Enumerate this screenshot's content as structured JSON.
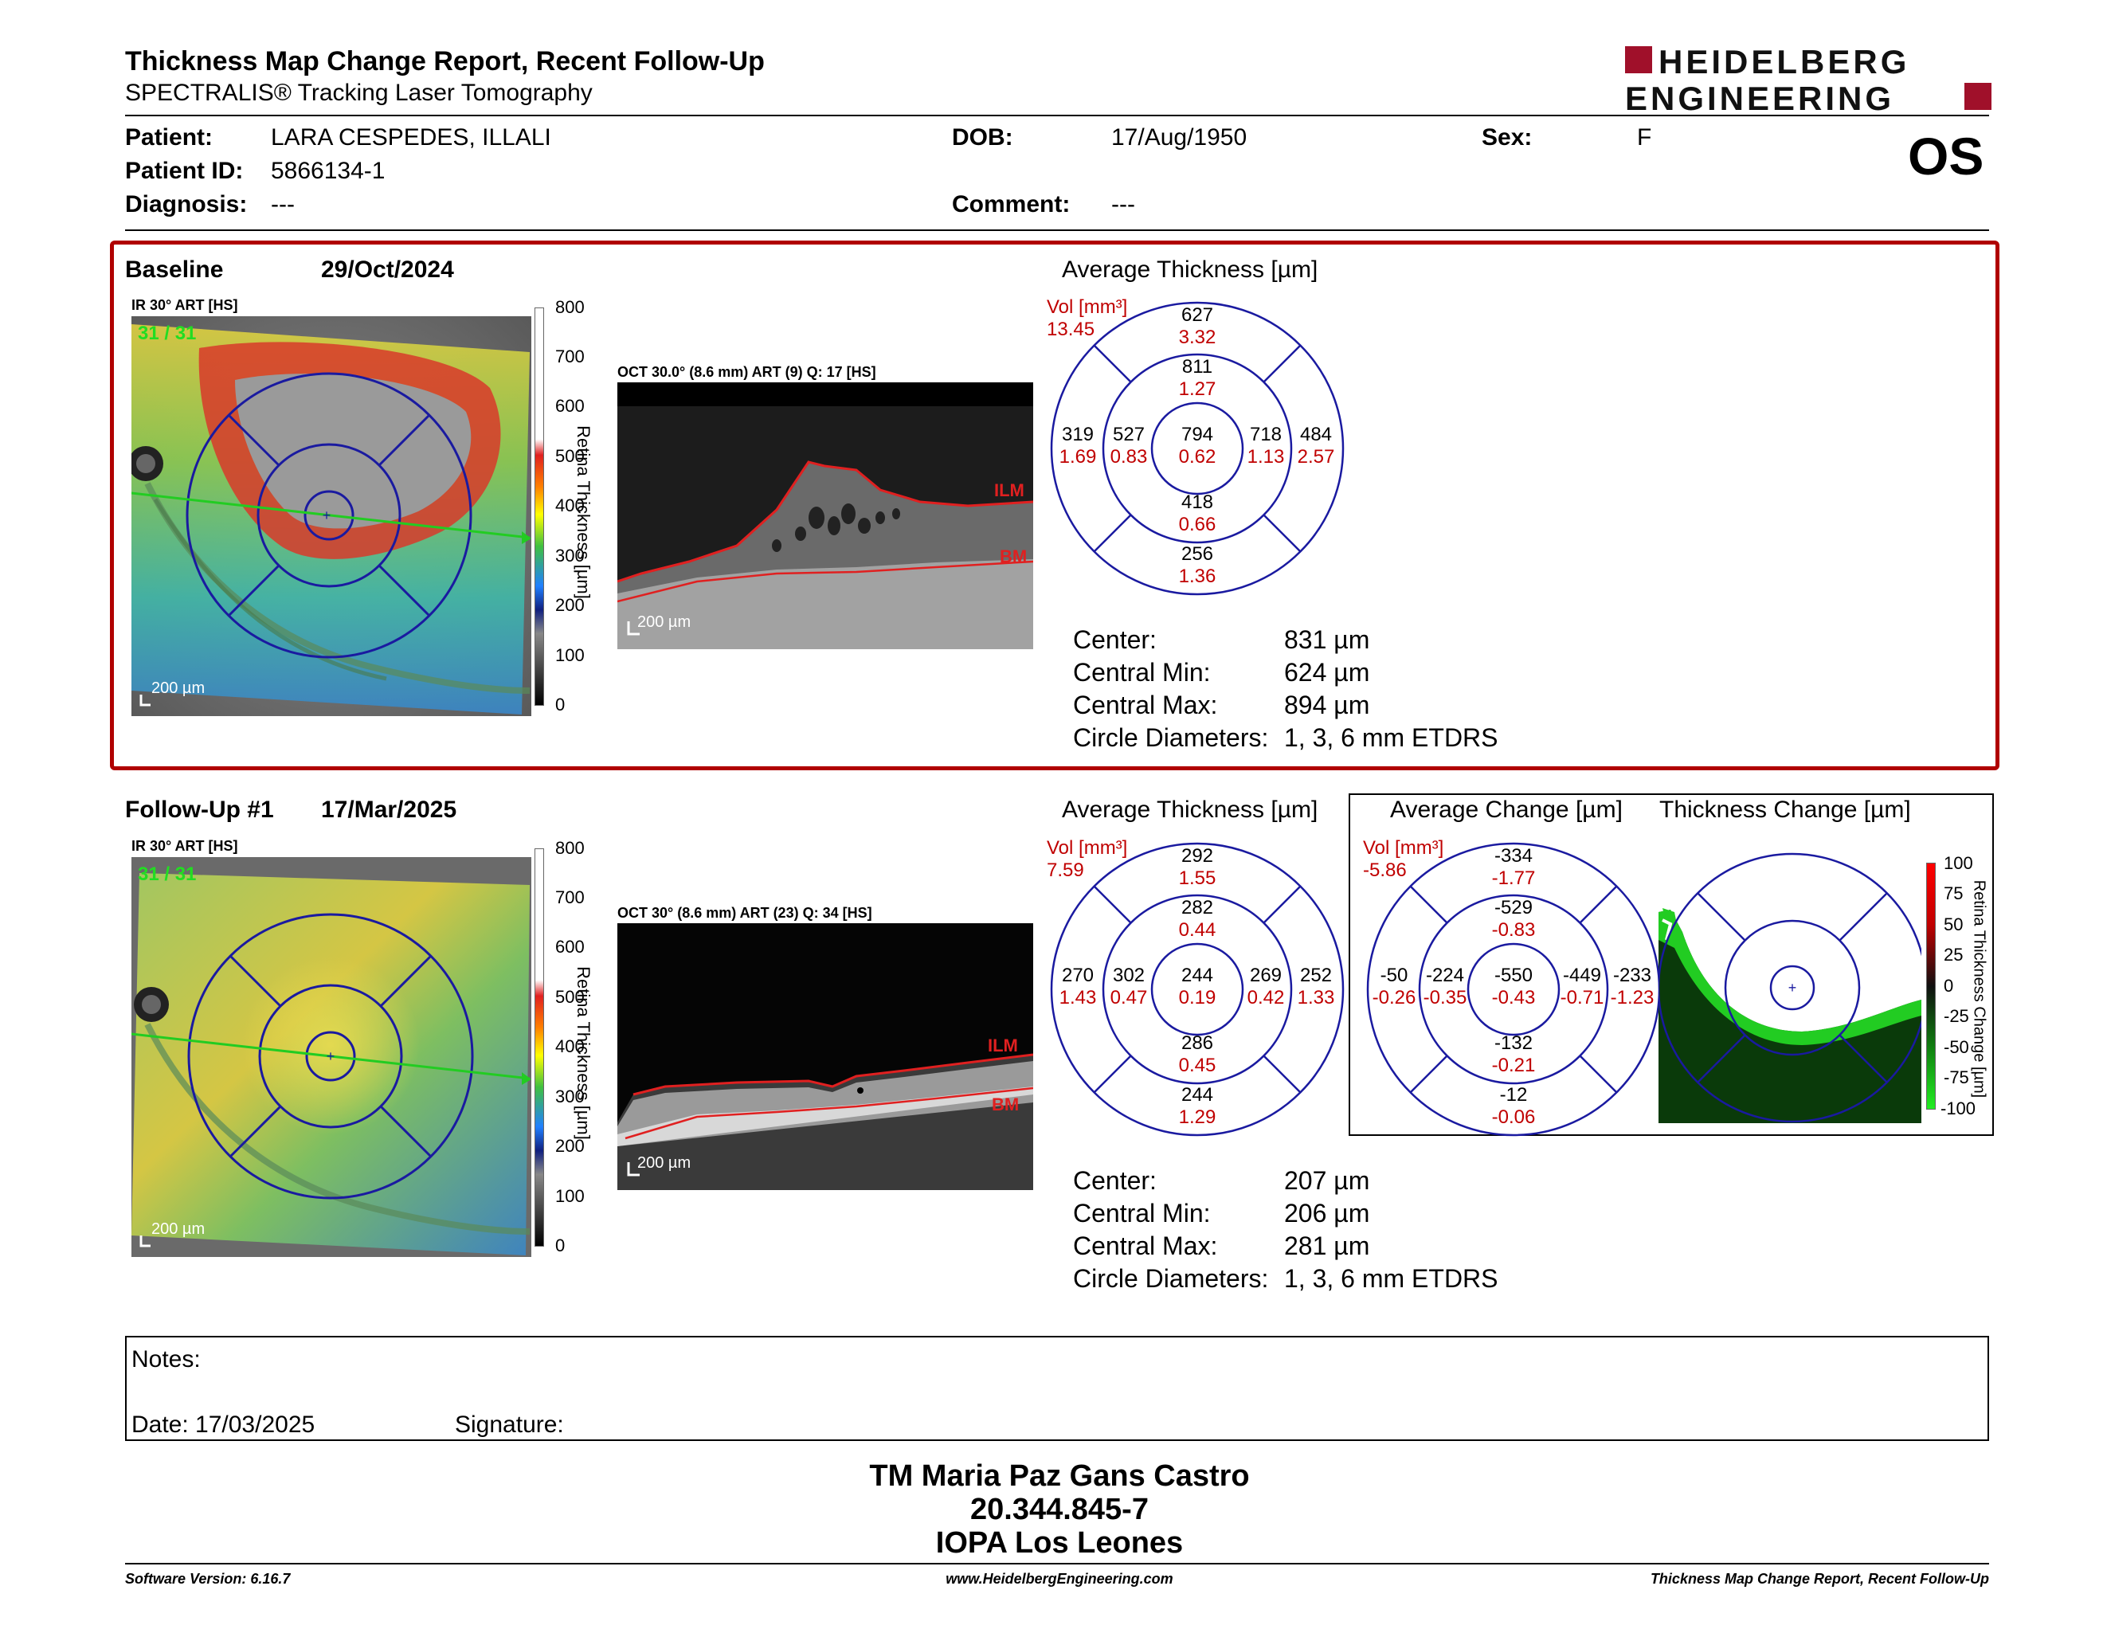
{
  "header": {
    "title": "Thickness Map Change Report, Recent Follow-Up",
    "subtitle": "SPECTRALIS® Tracking Laser Tomography",
    "logo_line1": "HEIDELBERG",
    "logo_line2": "ENGINEERING",
    "eye": "OS"
  },
  "patient": {
    "patient_label": "Patient:",
    "patient_value": "LARA CESPEDES, ILLALI",
    "id_label": "Patient ID:",
    "id_value": "5866134-1",
    "diagnosis_label": "Diagnosis:",
    "diagnosis_value": "---",
    "dob_label": "DOB:",
    "dob_value": "17/Aug/1950",
    "comment_label": "Comment:",
    "comment_value": "---",
    "sex_label": "Sex:",
    "sex_value": "F"
  },
  "colors": {
    "accent_red": "#b00000",
    "grid_blue": "#1a1aa0",
    "scan_green": "#22cc22"
  },
  "baseline": {
    "label": "Baseline",
    "date": "29/Oct/2024",
    "ir_label": "IR 30° ART [HS]",
    "ir_overlay": "31 / 31",
    "oct_label": "OCT 30.0° (8.6 mm) ART (9) Q: 17 [HS]",
    "scale_label": "200 µm",
    "colorbar_ticks": [
      "800",
      "700",
      "600",
      "500",
      "400",
      "300",
      "200",
      "100",
      "0"
    ],
    "colorbar_label": "Retina Thickness [µm]",
    "ilm": "ILM",
    "bm": "BM",
    "avg_title": "Average Thickness [µm]",
    "vol_label": "Vol [mm³]",
    "vol_value": "13.45",
    "etdrs": {
      "outer_sup": {
        "t": "627",
        "v": "3.32"
      },
      "inner_sup": {
        "t": "811",
        "v": "1.27"
      },
      "outer_tmp": {
        "t": "319",
        "v": "1.69"
      },
      "inner_tmp": {
        "t": "527",
        "v": "0.83"
      },
      "center": {
        "t": "794",
        "v": "0.62"
      },
      "inner_nas": {
        "t": "718",
        "v": "1.13"
      },
      "outer_nas": {
        "t": "484",
        "v": "2.57"
      },
      "inner_inf": {
        "t": "418",
        "v": "0.66"
      },
      "outer_inf": {
        "t": "256",
        "v": "1.36"
      }
    },
    "stats": {
      "center_label": "Center:",
      "center": "831 µm",
      "min_label": "Central Min:",
      "min": "624 µm",
      "max_label": "Central Max:",
      "max": "894 µm",
      "diam_label": "Circle Diameters:",
      "diam": "1, 3, 6 mm ETDRS"
    }
  },
  "followup": {
    "label": "Follow-Up #1",
    "date": "17/Mar/2025",
    "ir_label": "IR 30° ART [HS]",
    "ir_overlay": "31 / 31",
    "oct_label": "OCT 30° (8.6 mm) ART (23) Q: 34 [HS]",
    "scale_label": "200 µm",
    "colorbar_ticks": [
      "800",
      "700",
      "600",
      "500",
      "400",
      "300",
      "200",
      "100",
      "0"
    ],
    "colorbar_label": "Retina Thickness [µm]",
    "ilm": "ILM",
    "bm": "BM",
    "avg_title": "Average Thickness [µm]",
    "vol_label": "Vol [mm³]",
    "vol_value": "7.59",
    "etdrs": {
      "outer_sup": {
        "t": "292",
        "v": "1.55"
      },
      "inner_sup": {
        "t": "282",
        "v": "0.44"
      },
      "outer_tmp": {
        "t": "270",
        "v": "1.43"
      },
      "inner_tmp": {
        "t": "302",
        "v": "0.47"
      },
      "center": {
        "t": "244",
        "v": "0.19"
      },
      "inner_nas": {
        "t": "269",
        "v": "0.42"
      },
      "outer_nas": {
        "t": "252",
        "v": "1.33"
      },
      "inner_inf": {
        "t": "286",
        "v": "0.45"
      },
      "outer_inf": {
        "t": "244",
        "v": "1.29"
      }
    },
    "change_title": "Average Change [µm]",
    "change_vol_label": "Vol [mm³]",
    "change_vol_value": "-5.86",
    "change": {
      "outer_sup": {
        "t": "-334",
        "v": "-1.77"
      },
      "inner_sup": {
        "t": "-529",
        "v": "-0.83"
      },
      "outer_tmp": {
        "t": "-50",
        "v": "-0.26"
      },
      "inner_tmp": {
        "t": "-224",
        "v": "-0.35"
      },
      "center": {
        "t": "-550",
        "v": "-0.43"
      },
      "inner_nas": {
        "t": "-449",
        "v": "-0.71"
      },
      "outer_nas": {
        "t": "-233",
        "v": "-1.23"
      },
      "inner_inf": {
        "t": "-132",
        "v": "-0.21"
      },
      "outer_inf": {
        "t": "-12",
        "v": "-0.06"
      }
    },
    "thickness_change_title": "Thickness Change [µm]",
    "change_bar_ticks": [
      "100",
      "75",
      "50",
      "25",
      "0",
      "-25",
      "-50",
      "-75",
      "-100"
    ],
    "change_bar_label": "Retina Thickness Change [µm]",
    "stats": {
      "center_label": "Center:",
      "center": "207 µm",
      "min_label": "Central Min:",
      "min": "206 µm",
      "max_label": "Central Max:",
      "max": "281 µm",
      "diam_label": "Circle Diameters:",
      "diam": "1, 3, 6 mm ETDRS"
    }
  },
  "notes": {
    "label": "Notes:",
    "date_label": "Date: 17/03/2025",
    "signature_label": "Signature:"
  },
  "signer": {
    "name": "TM Maria Paz Gans Castro",
    "id": "20.344.845-7",
    "org": "IOPA Los Leones"
  },
  "footer": {
    "version": "Software Version: 6.16.7",
    "url": "www.HeidelbergEngineering.com",
    "report": "Thickness Map Change Report, Recent Follow-Up"
  }
}
